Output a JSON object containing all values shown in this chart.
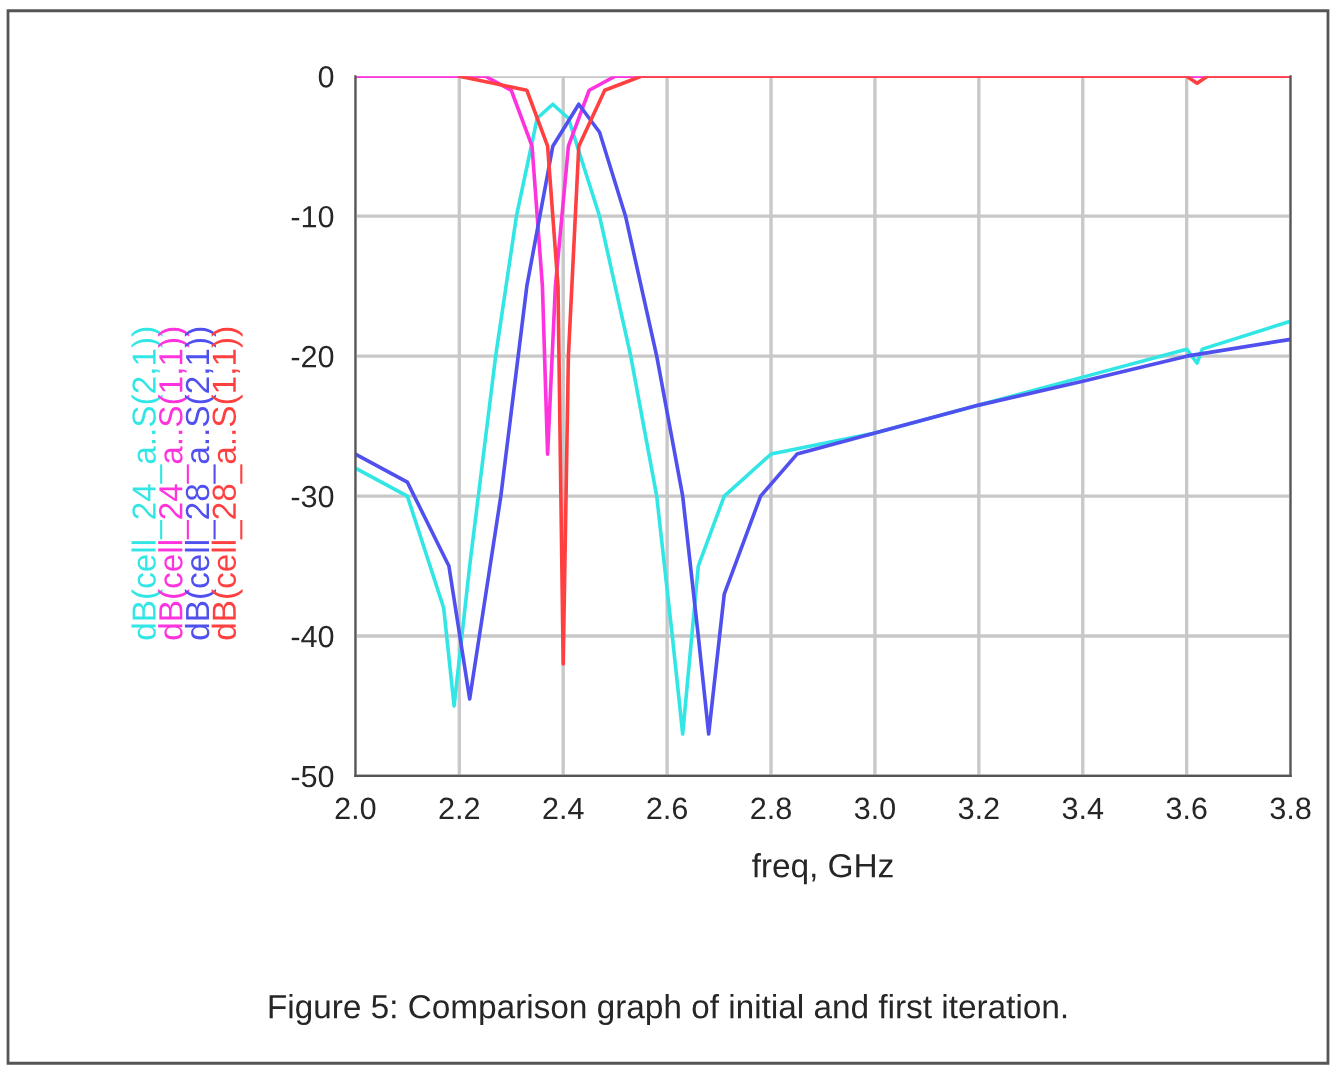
{
  "chart_data": {
    "type": "line",
    "xlabel": "freq, GHz",
    "xlim": [
      2.0,
      3.8
    ],
    "xticks": [
      {
        "value": 2.0,
        "label": "2.0"
      },
      2.2,
      2.4,
      2.6,
      2.8,
      {
        "value": 3.0,
        "label": "3.0"
      },
      3.2,
      3.4,
      3.6,
      3.8
    ],
    "ylim": [
      -50,
      0
    ],
    "yticks": [
      -50,
      -40,
      -30,
      -20,
      -10,
      0
    ],
    "grid": true,
    "legend": "left",
    "line_style": "solid",
    "marker": "none",
    "series": [
      {
        "name": "dB(cell_24_a..S(2,1))",
        "color": "#33e6e6",
        "x": [
          2.0,
          2.1,
          2.17,
          2.19,
          2.22,
          2.27,
          2.31,
          2.35,
          2.38,
          2.41,
          2.47,
          2.53,
          2.58,
          2.61,
          2.63,
          2.66,
          2.71,
          2.8,
          3.0,
          3.2,
          3.4,
          3.6,
          3.62,
          3.63,
          3.8
        ],
        "values": [
          -28,
          -30,
          -38,
          -45,
          -35,
          -20,
          -10,
          -3,
          -2,
          -3,
          -10,
          -20,
          -30,
          -40,
          -47,
          -35,
          -30,
          -27,
          -25.5,
          -23.5,
          -21.5,
          -19.5,
          -20.5,
          -19.5,
          -17.5
        ]
      },
      {
        "name": "dB(cell_24_a..S(1,1))",
        "color": "#ff33dd",
        "x": [
          2.0,
          2.25,
          2.3,
          2.34,
          2.36,
          2.37,
          2.385,
          2.41,
          2.45,
          2.5,
          3.8
        ],
        "values": [
          0,
          0,
          -1,
          -5,
          -15,
          -27,
          -15,
          -5,
          -1,
          0,
          0
        ]
      },
      {
        "name": "dB(cell_28_a..S(2,1))",
        "color": "#5050ee",
        "x": [
          2.0,
          2.1,
          2.18,
          2.22,
          2.28,
          2.33,
          2.38,
          2.43,
          2.47,
          2.52,
          2.58,
          2.63,
          2.66,
          2.68,
          2.71,
          2.78,
          2.85,
          3.0,
          3.2,
          3.4,
          3.6,
          3.8
        ],
        "values": [
          -27,
          -29,
          -35,
          -44.5,
          -30,
          -15,
          -5,
          -2,
          -4,
          -10,
          -20,
          -30,
          -40,
          -47,
          -37,
          -30,
          -27,
          -25.5,
          -23.5,
          -21.8,
          -20,
          -18.8
        ]
      },
      {
        "name": "dB(cell_28_a..S(1,1))",
        "color": "#ff4040",
        "x": [
          2.2,
          2.33,
          2.37,
          2.39,
          2.4,
          2.41,
          2.43,
          2.48,
          2.55,
          3.6,
          3.62,
          3.64,
          3.8
        ],
        "values": [
          0,
          -1,
          -5,
          -15,
          -42,
          -20,
          -5,
          -1,
          0,
          0,
          -0.5,
          0,
          0
        ]
      }
    ],
    "annotations": [
      "Figure 5: Comparison graph of initial and first iteration."
    ]
  }
}
